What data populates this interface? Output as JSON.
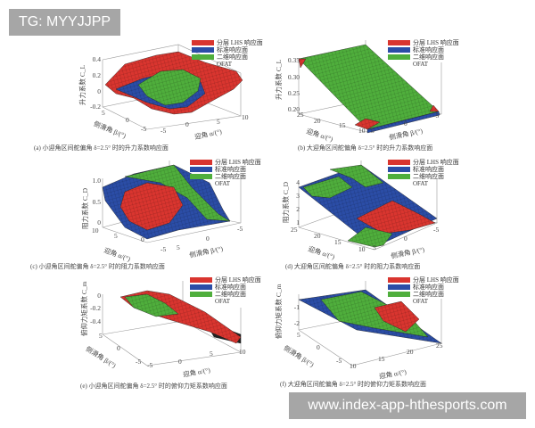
{
  "watermark_top": "TG: MYYJJPP",
  "watermark_bottom": "www.index-app-hthesports.com",
  "colors": {
    "lhs": "#d9352f",
    "standard": "#2b4da6",
    "two_dim": "#4fae3c",
    "ofat": "#222222"
  },
  "legend": [
    "分层 LHS 响应面",
    "标准响应面",
    "二维响应面",
    "OFAT"
  ],
  "panels": [
    {
      "id": "a",
      "caption": "(a) 小迎角区间舵偏角 δ=2.5° 时的升力系数响应面",
      "zlabel": "升力系数 C_L",
      "zticks": [
        "0.4",
        "0.2",
        "0",
        "-0.2"
      ],
      "alpha_label": "迎角 α/(°)",
      "alpha_ticks": [
        "-5",
        "0",
        "5",
        "10"
      ],
      "beta_label": "侧滑角 β/(°)",
      "beta_ticks": [
        "5",
        "0",
        "-5"
      ]
    },
    {
      "id": "b",
      "caption": "(b) 大迎角区间舵偏角 δ=2.5° 时的升力系数响应面",
      "zlabel": "升力系数 C_L",
      "zticks": [
        "0.35",
        "0.30",
        "0.25",
        "0.20"
      ],
      "alpha_label": "迎角 α/(°)",
      "alpha_ticks": [
        "25",
        "20",
        "15",
        "10"
      ],
      "beta_label": "侧滑角 β/(°)",
      "beta_ticks": [
        "5",
        "0",
        "-5"
      ]
    },
    {
      "id": "c",
      "caption": "(c) 小迎角区间舵偏角 δ=2.5° 时的阻力系数响应面",
      "zlabel": "阻力系数 C_D",
      "zticks": [
        "1.0",
        "0.5",
        "0"
      ],
      "alpha_label": "迎角 α/(°)",
      "alpha_ticks": [
        "10",
        "5",
        "0",
        "-5"
      ],
      "beta_label": "侧滑角 β/(°)",
      "beta_ticks": [
        "5",
        "0",
        "-5"
      ]
    },
    {
      "id": "d",
      "caption": "(d) 大迎角区间舵偏角 δ=2.5° 时的阻力系数响应面",
      "zlabel": "阻力系数 C_D",
      "zticks": [
        "4",
        "3",
        "2",
        "1"
      ],
      "alpha_label": "迎角 α/(°)",
      "alpha_ticks": [
        "25",
        "20",
        "15",
        "10"
      ],
      "beta_label": "侧滑角 β/(°)",
      "beta_ticks": [
        "5",
        "0",
        "-5"
      ]
    },
    {
      "id": "e",
      "caption": "(e) 小迎角区间舵偏角 δ=2.5° 时的俯仰力矩系数响应面",
      "zlabel": "俯仰力矩系数 C_m",
      "zticks": [
        "0",
        "-0.2",
        "-0.4"
      ],
      "alpha_label": "迎角 α/(°)",
      "alpha_ticks": [
        "-5",
        "0",
        "5",
        "10"
      ],
      "beta_label": "侧滑角 β/(°)",
      "beta_ticks": [
        "5",
        "0",
        "-5"
      ]
    },
    {
      "id": "f",
      "caption": "(f) 大迎角区间舵偏角 δ=2.5° 时的俯仰力矩系数响应面",
      "zlabel": "俯仰力矩系数 C_m",
      "zticks": [
        "-1",
        "-2"
      ],
      "alpha_label": "迎角 α/(°)",
      "alpha_ticks": [
        "10",
        "15",
        "20",
        "25"
      ],
      "beta_label": "侧滑角 β/(°)",
      "beta_ticks": [
        "5",
        "0",
        "-5"
      ]
    }
  ]
}
